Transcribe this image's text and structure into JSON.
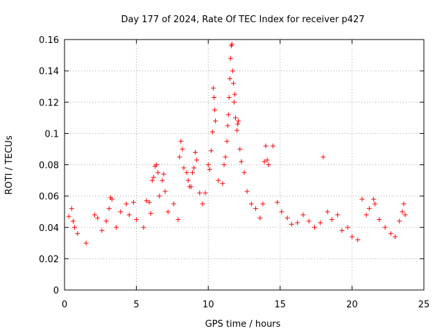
{
  "chart_data": {
    "type": "scatter",
    "title": "Day 177 of 2024, Rate Of TEC Index for receiver p427",
    "xlabel": "GPS time / hours",
    "ylabel": "ROTI / TECUs",
    "xlim": [
      0,
      25
    ],
    "ylim": [
      0,
      0.16
    ],
    "xticks": [
      0,
      5,
      10,
      15,
      20,
      25
    ],
    "xtick_labels": [
      "0",
      "5",
      "10",
      "15",
      "20",
      "25"
    ],
    "yticks": [
      0,
      0.02,
      0.04,
      0.06,
      0.08,
      0.1,
      0.12,
      0.14,
      0.16
    ],
    "ytick_labels": [
      "0",
      "0.02",
      "0.04",
      "0.06",
      "0.08",
      "0.1",
      "0.12",
      "0.14",
      "0.16"
    ],
    "grid": true,
    "marker": "+",
    "color": "#ff0000",
    "series": [
      {
        "name": "ROTI",
        "points": [
          [
            0.3,
            0.047
          ],
          [
            0.5,
            0.052
          ],
          [
            0.6,
            0.044
          ],
          [
            0.7,
            0.04
          ],
          [
            0.9,
            0.036
          ],
          [
            1.5,
            0.03
          ],
          [
            2.1,
            0.048
          ],
          [
            2.3,
            0.046
          ],
          [
            2.6,
            0.038
          ],
          [
            2.9,
            0.044
          ],
          [
            3.2,
            0.059
          ],
          [
            3.3,
            0.058
          ],
          [
            3.1,
            0.052
          ],
          [
            3.6,
            0.04
          ],
          [
            3.9,
            0.05
          ],
          [
            4.3,
            0.055
          ],
          [
            4.5,
            0.048
          ],
          [
            4.8,
            0.056
          ],
          [
            5.0,
            0.045
          ],
          [
            5.5,
            0.04
          ],
          [
            5.7,
            0.057
          ],
          [
            5.9,
            0.056
          ],
          [
            6.0,
            0.049
          ],
          [
            6.1,
            0.07
          ],
          [
            6.2,
            0.072
          ],
          [
            6.3,
            0.079
          ],
          [
            6.4,
            0.08
          ],
          [
            6.5,
            0.075
          ],
          [
            6.6,
            0.06
          ],
          [
            6.8,
            0.07
          ],
          [
            6.9,
            0.074
          ],
          [
            7.0,
            0.063
          ],
          [
            7.2,
            0.05
          ],
          [
            7.6,
            0.055
          ],
          [
            7.9,
            0.045
          ],
          [
            8.0,
            0.085
          ],
          [
            8.1,
            0.095
          ],
          [
            8.2,
            0.09
          ],
          [
            8.3,
            0.078
          ],
          [
            8.5,
            0.075
          ],
          [
            8.6,
            0.07
          ],
          [
            8.7,
            0.066
          ],
          [
            8.8,
            0.066
          ],
          [
            8.9,
            0.075
          ],
          [
            9.0,
            0.078
          ],
          [
            9.1,
            0.088
          ],
          [
            9.2,
            0.083
          ],
          [
            9.4,
            0.062
          ],
          [
            9.6,
            0.055
          ],
          [
            9.8,
            0.062
          ],
          [
            10.0,
            0.08
          ],
          [
            10.1,
            0.077
          ],
          [
            10.2,
            0.089
          ],
          [
            10.3,
            0.101
          ],
          [
            10.35,
            0.129
          ],
          [
            10.4,
            0.123
          ],
          [
            10.45,
            0.115
          ],
          [
            10.5,
            0.108
          ],
          [
            10.7,
            0.07
          ],
          [
            11.0,
            0.068
          ],
          [
            11.1,
            0.08
          ],
          [
            11.2,
            0.085
          ],
          [
            11.3,
            0.095
          ],
          [
            11.35,
            0.105
          ],
          [
            11.4,
            0.112
          ],
          [
            11.45,
            0.123
          ],
          [
            11.5,
            0.135
          ],
          [
            11.55,
            0.148
          ],
          [
            11.6,
            0.156
          ],
          [
            11.65,
            0.157
          ],
          [
            11.7,
            0.14
          ],
          [
            11.75,
            0.132
          ],
          [
            11.8,
            0.12
          ],
          [
            11.85,
            0.125
          ],
          [
            11.9,
            0.11
          ],
          [
            12.0,
            0.102
          ],
          [
            12.05,
            0.106
          ],
          [
            12.1,
            0.108
          ],
          [
            12.2,
            0.09
          ],
          [
            12.3,
            0.082
          ],
          [
            12.5,
            0.075
          ],
          [
            12.7,
            0.063
          ],
          [
            13.0,
            0.055
          ],
          [
            13.3,
            0.052
          ],
          [
            13.6,
            0.046
          ],
          [
            13.8,
            0.055
          ],
          [
            13.9,
            0.082
          ],
          [
            14.0,
            0.092
          ],
          [
            14.1,
            0.083
          ],
          [
            14.2,
            0.08
          ],
          [
            14.5,
            0.092
          ],
          [
            14.8,
            0.056
          ],
          [
            15.1,
            0.05
          ],
          [
            15.5,
            0.046
          ],
          [
            15.8,
            0.042
          ],
          [
            16.2,
            0.043
          ],
          [
            16.6,
            0.048
          ],
          [
            17.0,
            0.044
          ],
          [
            17.4,
            0.04
          ],
          [
            17.8,
            0.043
          ],
          [
            18.0,
            0.085
          ],
          [
            18.3,
            0.05
          ],
          [
            18.6,
            0.045
          ],
          [
            19.0,
            0.048
          ],
          [
            19.3,
            0.038
          ],
          [
            19.7,
            0.04
          ],
          [
            20.0,
            0.034
          ],
          [
            20.4,
            0.032
          ],
          [
            20.7,
            0.058
          ],
          [
            21.0,
            0.048
          ],
          [
            21.2,
            0.052
          ],
          [
            21.5,
            0.058
          ],
          [
            21.6,
            0.055
          ],
          [
            21.9,
            0.045
          ],
          [
            22.3,
            0.04
          ],
          [
            22.7,
            0.036
          ],
          [
            23.0,
            0.034
          ],
          [
            23.3,
            0.044
          ],
          [
            23.5,
            0.05
          ],
          [
            23.6,
            0.055
          ],
          [
            23.7,
            0.048
          ]
        ]
      }
    ]
  }
}
